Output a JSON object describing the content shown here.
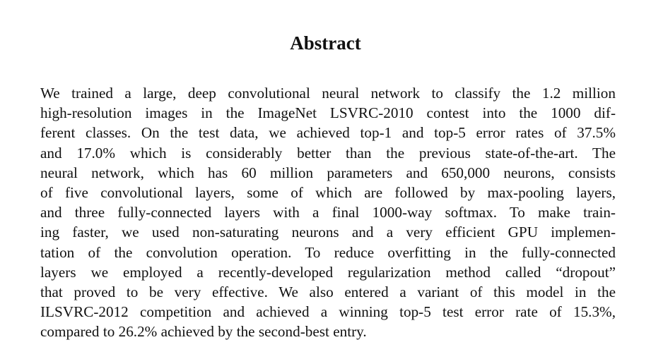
{
  "title": "Abstract",
  "lines": [
    "We trained a large, deep convolutional neural network to classify the 1.2 million",
    "high-resolution images in the ImageNet LSVRC-2010 contest into the 1000 dif-",
    "ferent classes. On the test data, we achieved top-1 and top-5 error rates of 37.5%",
    "and 17.0% which is considerably better than the previous state-of-the-art. The",
    "neural network, which has 60 million parameters and 650,000 neurons, consists",
    "of five convolutional layers, some of which are followed by max-pooling layers,",
    "and three fully-connected layers with a final 1000-way softmax. To make train-",
    "ing faster, we used non-saturating neurons and a very efficient GPU implemen-",
    "tation of the convolution operation. To reduce overfitting in the fully-connected",
    "layers we employed a recently-developed regularization method called “dropout”",
    "that proved to be very effective. We also entered a variant of this model in the",
    "ILSVRC-2012 competition and achieved a winning top-5 test error rate of 15.3%,",
    "compared to 26.2% achieved by the second-best entry."
  ]
}
